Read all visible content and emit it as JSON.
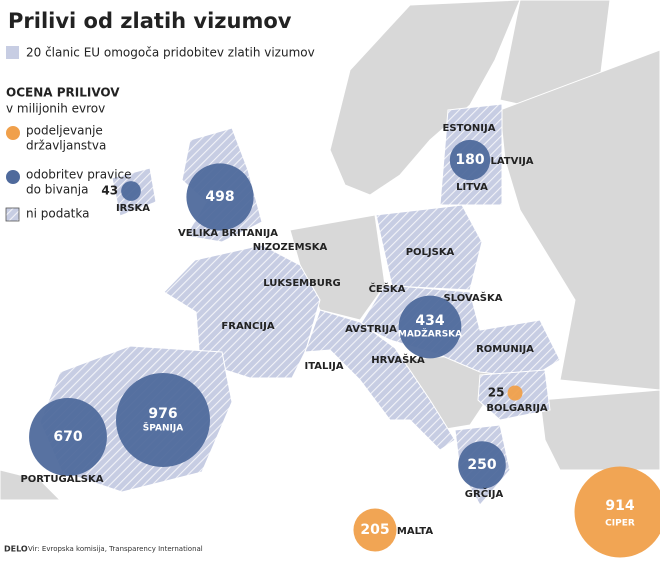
{
  "header": {
    "title": "Prilivi od zlatih vizumov"
  },
  "legend": {
    "eu_member": "20 članic EU omogoča pridobitev zlatih vizumov",
    "scale_title": "OCENA PRILIVOV",
    "scale_unit": "v milijonih evrov",
    "items": [
      {
        "lines": [
          "podeljevanje",
          "državljanstva"
        ],
        "color": "#f0a04b"
      },
      {
        "lines": [
          "odobritev pravice",
          "do bivanja"
        ],
        "color": "#4f6a9c"
      },
      {
        "lines": [
          "ni podatka"
        ]
      }
    ]
  },
  "bubbles": [
    {
      "label": "IRSKA",
      "value": 43,
      "color": "#4f6a9c"
    },
    {
      "label": "VELIKA BRITANIJA",
      "value": 498,
      "color": "#4f6a9c"
    },
    {
      "label": "LATVIJA",
      "value": 180,
      "color": "#4f6a9c"
    },
    {
      "label": "MADŽARSKA",
      "value": 434,
      "color": "#4f6a9c"
    },
    {
      "label": "BOLGARIJA",
      "value": 25,
      "color": "#f0a04b"
    },
    {
      "label": "GRČIJA",
      "value": 250,
      "color": "#4f6a9c"
    },
    {
      "label": "ŠPANIJA",
      "value": 976,
      "color": "#4f6a9c"
    },
    {
      "label": "PORTUGALSKA",
      "value": 670,
      "color": "#4f6a9c"
    },
    {
      "label": "MALTA",
      "value": 205,
      "color": "#f0a04b"
    },
    {
      "label": "CIPER",
      "value": 914,
      "color": "#f0a04b"
    }
  ],
  "countries": [
    "ESTONIJA",
    "LITVA",
    "NIZOZEMSKA",
    "LUKSEMBURG",
    "FRANCIJA",
    "ITALIJA",
    "AVSTRIJA",
    "ČEŠKA",
    "POLJSKA",
    "SLOVAŠKA",
    "ROMUNIJA",
    "HRVAŠKA"
  ],
  "footer": {
    "brand": "DELO",
    "source": "Vir: Evropska komisija, Transparency International"
  }
}
